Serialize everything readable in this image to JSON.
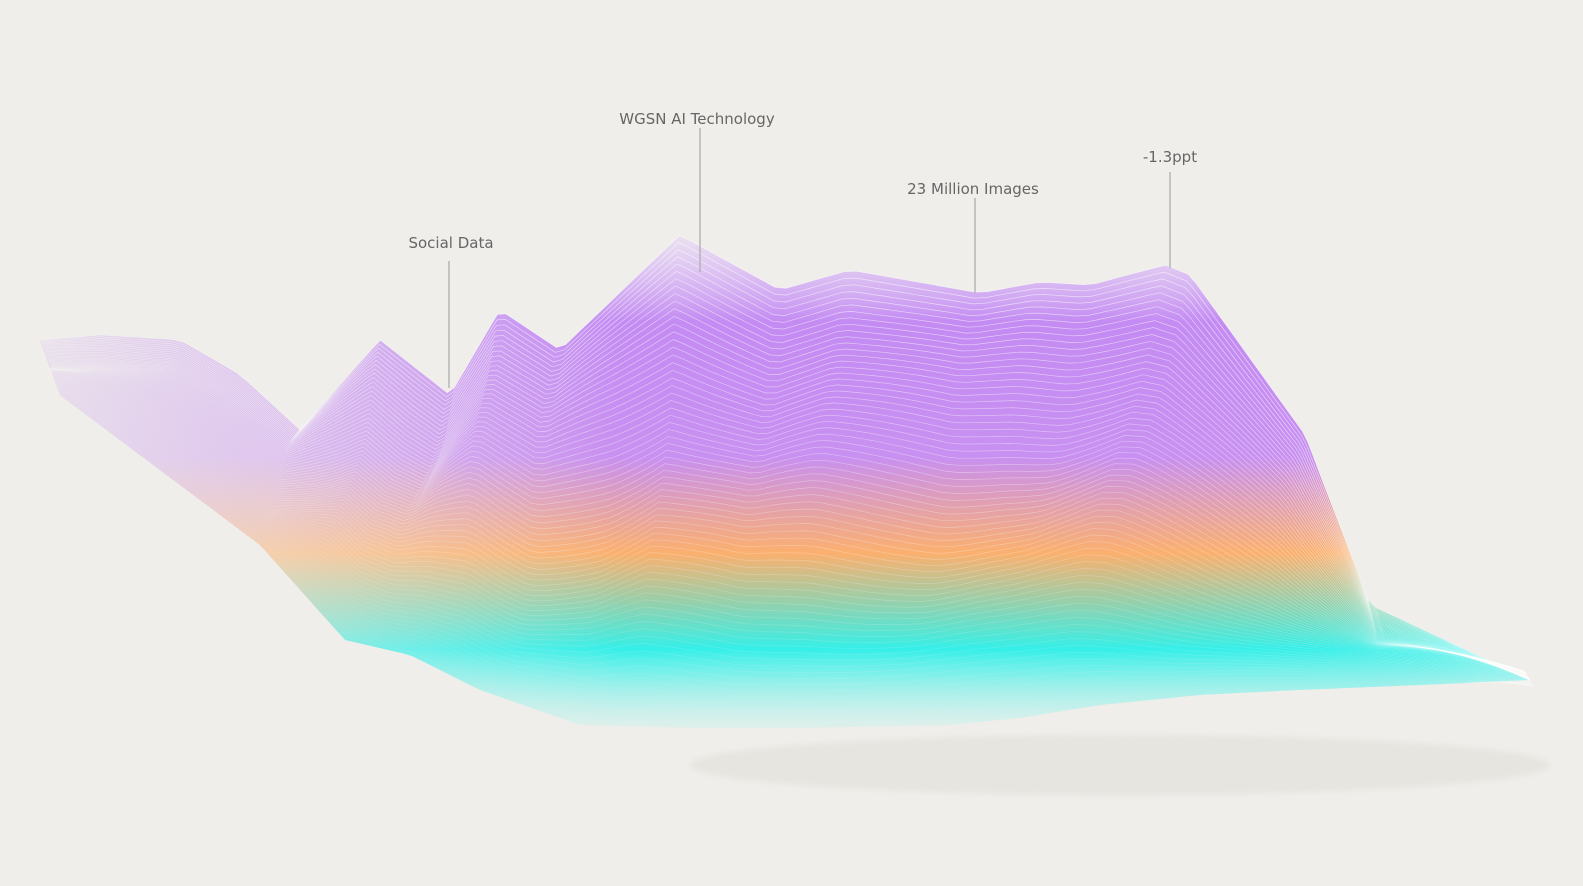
{
  "annotations": [
    "Social Data",
    "WGSN AI Technology",
    "23 Million Images",
    "-1.3ppt"
  ]
}
